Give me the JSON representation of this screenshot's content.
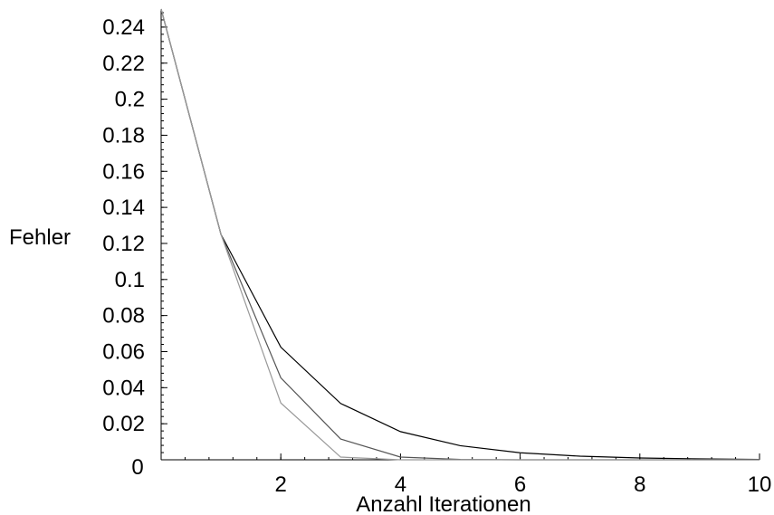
{
  "chart_data": {
    "type": "line",
    "title": "",
    "xlabel": "Anzahl Iterationen",
    "ylabel": "Fehler",
    "xlim": [
      0,
      10
    ],
    "ylim": [
      0,
      0.25
    ],
    "grid": false,
    "legend": "none",
    "x_ticks": [
      {
        "value": 0,
        "label": "0"
      },
      {
        "value": 2,
        "label": "2"
      },
      {
        "value": 4,
        "label": "4"
      },
      {
        "value": 6,
        "label": "6"
      },
      {
        "value": 8,
        "label": "8"
      },
      {
        "value": 10,
        "label": "10"
      }
    ],
    "y_ticks": [
      {
        "value": 0.02,
        "label": "0.02"
      },
      {
        "value": 0.04,
        "label": "0.04"
      },
      {
        "value": 0.06,
        "label": "0.06"
      },
      {
        "value": 0.08,
        "label": "0.08"
      },
      {
        "value": 0.1,
        "label": "0.1"
      },
      {
        "value": 0.12,
        "label": "0.12"
      },
      {
        "value": 0.14,
        "label": "0.14"
      },
      {
        "value": 0.16,
        "label": "0.16"
      },
      {
        "value": 0.18,
        "label": "0.18"
      },
      {
        "value": 0.2,
        "label": "0.2"
      },
      {
        "value": 0.22,
        "label": "0.22"
      },
      {
        "value": 0.24,
        "label": "0.24"
      }
    ],
    "x": [
      0,
      1,
      2,
      3,
      4,
      5,
      6,
      7,
      8,
      9,
      10
    ],
    "series": [
      {
        "color": "#000000",
        "values": [
          0.25,
          0.125,
          0.0625,
          0.03125,
          0.015625,
          0.0078,
          0.0039,
          0.002,
          0.001,
          0.0005,
          0.0002
        ]
      },
      {
        "color": "#555555",
        "values": [
          0.25,
          0.125,
          0.0455,
          0.0115,
          0.0015,
          0.0002,
          0.0,
          0.0,
          0.0,
          0.0,
          0.0
        ]
      },
      {
        "color": "#999999",
        "values": [
          0.25,
          0.125,
          0.0315,
          0.0015,
          0.0,
          0.0,
          0.0,
          0.0,
          0.0,
          0.0,
          0.0
        ]
      }
    ]
  }
}
